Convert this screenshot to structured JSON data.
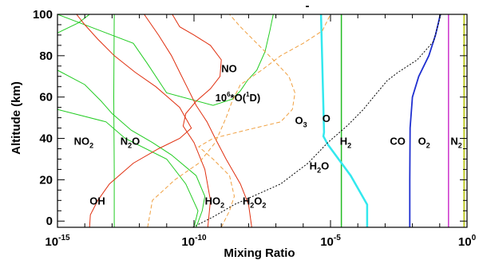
{
  "chart_data": {
    "type": "line",
    "title": "",
    "xlabel": "Mixing Ratio",
    "ylabel": "Altitude (km)",
    "xscale": "log",
    "xlim": [
      1e-15,
      1
    ],
    "ylim": [
      -3,
      100
    ],
    "x_ticks": [
      {
        "value": 1e-15,
        "base": "10",
        "exp": "-15"
      },
      {
        "value": 1e-10,
        "base": "10",
        "exp": "-10"
      },
      {
        "value": 1e-05,
        "base": "10",
        "exp": "-5"
      },
      {
        "value": 1,
        "base": "10",
        "exp": "0"
      }
    ],
    "y_ticks": [
      "0",
      "20",
      "40",
      "60",
      "80",
      "100"
    ],
    "top_mark": "-",
    "grid": false,
    "legend": "none",
    "series": [
      {
        "key": "N2",
        "color": "#b5c400",
        "dash": "solid",
        "width": 1.5,
        "points": [
          [
            0.78,
            -3
          ],
          [
            0.78,
            100
          ]
        ]
      },
      {
        "key": "O2",
        "color": "#cc33cc",
        "dash": "solid",
        "width": 1.5,
        "points": [
          [
            0.21,
            -3
          ],
          [
            0.21,
            100
          ]
        ]
      },
      {
        "key": "H2",
        "color": "#22bb22",
        "dash": "solid",
        "width": 1.5,
        "points": [
          [
            2.5e-05,
            -3
          ],
          [
            2.5e-05,
            100
          ]
        ]
      },
      {
        "key": "CO",
        "color": "#1f2fd0",
        "dash": "solid",
        "width": 1.8,
        "points": [
          [
            0.008,
            -3
          ],
          [
            0.008,
            20
          ],
          [
            0.0082,
            45
          ],
          [
            0.01,
            60
          ],
          [
            0.017,
            70
          ],
          [
            0.04,
            80
          ],
          [
            0.07,
            90
          ],
          [
            0.09,
            96
          ],
          [
            0.105,
            100
          ]
        ]
      },
      {
        "key": "H2O",
        "color": "#33e8ee",
        "dash": "solid",
        "width": 2.5,
        "points": [
          [
            0.00022,
            -3
          ],
          [
            0.00022,
            8
          ],
          [
            5.5e-05,
            22
          ],
          [
            8e-06,
            37
          ],
          [
            5.5e-06,
            41
          ],
          [
            5.8e-06,
            43
          ],
          [
            4.5e-06,
            100
          ]
        ]
      },
      {
        "key": "O3",
        "color": "#000000",
        "dash": "2,2",
        "width": 1,
        "points": [
          [
            9e-11,
            -3
          ],
          [
            5e-10,
            2
          ],
          [
            3e-09,
            8
          ],
          [
            1.5e-07,
            18
          ],
          [
            1.5e-06,
            28
          ],
          [
            8e-06,
            38
          ],
          [
            4e-05,
            46
          ],
          [
            0.00016,
            54
          ],
          [
            0.0005,
            62
          ],
          [
            0.0012,
            68
          ],
          [
            0.003,
            72
          ],
          [
            0.015,
            78
          ],
          [
            0.06,
            87
          ],
          [
            0.11,
            100
          ]
        ]
      },
      {
        "key": "NO",
        "color": "#22cc22",
        "dash": "solid",
        "width": 1,
        "points": [
          [
            1e-10,
            -3
          ],
          [
            1.4e-10,
            5
          ],
          [
            5e-11,
            18
          ],
          [
            1e-11,
            30
          ],
          [
            3e-13,
            40
          ],
          [
            6e-14,
            48
          ],
          [
            1e-15,
            54
          ]
        ]
      },
      {
        "key": "NO_upper",
        "color": "#22cc22",
        "dash": "solid",
        "width": 1,
        "points": [
          [
            1e-15,
            100
          ],
          [
            6e-13,
            86
          ],
          [
            2e-12,
            76
          ],
          [
            1e-11,
            62
          ],
          [
            5e-10,
            56
          ],
          [
            2.5e-09,
            59
          ],
          [
            5e-09,
            63
          ],
          [
            9e-09,
            68
          ],
          [
            2e-08,
            73
          ],
          [
            4e-08,
            82
          ],
          [
            6e-08,
            92
          ],
          [
            8e-08,
            100
          ]
        ]
      },
      {
        "key": "NO2",
        "color": "#22cc22",
        "dash": "solid",
        "width": 1,
        "points": [
          [
            1.2e-10,
            -3
          ],
          [
            2e-10,
            5
          ],
          [
            2.5e-10,
            12
          ],
          [
            1.2e-10,
            22
          ],
          [
            1.5e-11,
            32
          ],
          [
            3e-12,
            38
          ],
          [
            5e-13,
            44
          ],
          [
            1e-13,
            52
          ],
          [
            4e-14,
            58
          ],
          [
            1e-14,
            66
          ],
          [
            1e-15,
            73
          ]
        ]
      },
      {
        "key": "NO2_upper",
        "color": "#22cc22",
        "dash": "solid",
        "width": 1,
        "points": [
          [
            1e-15,
            91
          ],
          [
            6e-15,
            96
          ],
          [
            1.5e-14,
            100
          ]
        ]
      },
      {
        "key": "N2O",
        "color": "#22cc22",
        "dash": "solid",
        "width": 1,
        "points": [
          [
            1.2e-13,
            -3
          ],
          [
            1.2e-13,
            25
          ],
          [
            1.15e-13,
            60
          ],
          [
            1.2e-13,
            100
          ]
        ]
      },
      {
        "key": "OH",
        "color": "#e03010",
        "dash": "solid",
        "width": 1,
        "points": [
          [
            1.5e-14,
            -3
          ],
          [
            1.6e-14,
            3
          ],
          [
            3e-14,
            10
          ],
          [
            8e-14,
            18
          ],
          [
            6e-13,
            28
          ],
          [
            5e-12,
            35
          ],
          [
            3e-11,
            40
          ],
          [
            8e-11,
            45
          ],
          [
            3e-11,
            55
          ],
          [
            4e-12,
            65
          ],
          [
            7e-13,
            72
          ],
          [
            1.2e-13,
            80
          ],
          [
            3e-14,
            88
          ],
          [
            1e-14,
            95
          ],
          [
            5e-15,
            100
          ]
        ]
      },
      {
        "key": "HO2",
        "color": "#e03010",
        "dash": "solid",
        "width": 1,
        "points": [
          [
            3.2e-10,
            -3
          ],
          [
            4e-10,
            10
          ],
          [
            2.5e-10,
            25
          ],
          [
            1e-10,
            38
          ],
          [
            4e-11,
            46
          ],
          [
            5e-11,
            52
          ],
          [
            1.2e-10,
            58
          ],
          [
            4e-10,
            64
          ],
          [
            9e-10,
            70
          ],
          [
            1e-09,
            78
          ],
          [
            4e-10,
            85
          ],
          [
            1e-10,
            90
          ],
          [
            3e-11,
            94
          ],
          [
            1.6e-11,
            100
          ]
        ]
      },
      {
        "key": "H2O2",
        "color": "#e03010",
        "dash": "solid",
        "width": 1,
        "points": [
          [
            1.3e-08,
            -3
          ],
          [
            1e-08,
            8
          ],
          [
            5e-09,
            18
          ],
          [
            1.5e-09,
            30
          ],
          [
            6e-10,
            40
          ],
          [
            3e-10,
            48
          ],
          [
            1.2e-10,
            56
          ],
          [
            6e-11,
            64
          ],
          [
            3e-11,
            72
          ],
          [
            1.5e-11,
            80
          ],
          [
            5e-12,
            90
          ],
          [
            1.5e-12,
            100
          ]
        ]
      },
      {
        "key": "O1D",
        "color": "#f0a040",
        "dash": "5,3",
        "width": 1,
        "points": [
          [
            2e-12,
            -3
          ],
          [
            3e-12,
            10
          ],
          [
            2e-11,
            20
          ],
          [
            1.5e-10,
            28
          ],
          [
            6e-10,
            38
          ],
          [
            1.5e-09,
            50
          ],
          [
            2.5e-09,
            58
          ],
          [
            5e-09,
            66
          ],
          [
            3e-08,
            73
          ],
          [
            1.5e-07,
            80
          ],
          [
            1e-06,
            86
          ],
          [
            5e-06,
            92
          ],
          [
            1e-05,
            100
          ]
        ]
      },
      {
        "key": "O",
        "color": "#f0a040",
        "dash": "5,3",
        "width": 1,
        "points": [
          [
            1e-09,
            -3
          ],
          [
            2e-09,
            5
          ],
          [
            3e-09,
            12
          ],
          [
            2e-09,
            22
          ],
          [
            5e-10,
            30
          ],
          [
            1.5e-10,
            36
          ],
          [
            5e-10,
            40
          ],
          [
            8e-09,
            44
          ],
          [
            1.5e-07,
            48
          ],
          [
            4e-07,
            54
          ],
          [
            5e-07,
            62
          ],
          [
            3e-07,
            70
          ],
          [
            8e-08,
            78
          ],
          [
            2e-08,
            86
          ],
          [
            5e-09,
            94
          ],
          [
            2e-09,
            100
          ]
        ]
      }
    ],
    "annotations": [
      {
        "key": "NO2",
        "parts": [
          {
            "t": "NO",
            "k": "n"
          },
          {
            "t": "2",
            "k": "sub"
          }
        ],
        "x": 4e-15,
        "y": 37
      },
      {
        "key": "N2O",
        "parts": [
          {
            "t": "N",
            "k": "n"
          },
          {
            "t": "2",
            "k": "sub"
          },
          {
            "t": "O",
            "k": "n"
          }
        ],
        "x": 2e-13,
        "y": 37
      },
      {
        "key": "NO",
        "parts": [
          {
            "t": "NO",
            "k": "n"
          }
        ],
        "x": 1e-09,
        "y": 72
      },
      {
        "key": "O1D",
        "parts": [
          {
            "t": "10",
            "k": "n"
          },
          {
            "t": "6",
            "k": "sup"
          },
          {
            "t": "*O(",
            "k": "n"
          },
          {
            "t": "1",
            "k": "sup"
          },
          {
            "t": "D)",
            "k": "n"
          }
        ],
        "x": 6e-10,
        "y": 58
      },
      {
        "key": "O3",
        "parts": [
          {
            "t": "O",
            "k": "n"
          },
          {
            "t": "3",
            "k": "sub"
          }
        ],
        "x": 5e-07,
        "y": 47
      },
      {
        "key": "O",
        "parts": [
          {
            "t": "O",
            "k": "n"
          }
        ],
        "x": 5e-06,
        "y": 48
      },
      {
        "key": "H2",
        "parts": [
          {
            "t": "H",
            "k": "n"
          },
          {
            "t": "2",
            "k": "sub"
          }
        ],
        "x": 2.2e-05,
        "y": 37
      },
      {
        "key": "CO",
        "parts": [
          {
            "t": "CO",
            "k": "n"
          }
        ],
        "x": 0.0015,
        "y": 37
      },
      {
        "key": "O2",
        "parts": [
          {
            "t": "O",
            "k": "n"
          },
          {
            "t": "2",
            "k": "sub"
          }
        ],
        "x": 0.016,
        "y": 37
      },
      {
        "key": "N2",
        "parts": [
          {
            "t": "N",
            "k": "n"
          },
          {
            "t": "2",
            "k": "sub"
          }
        ],
        "x": 0.25,
        "y": 37
      },
      {
        "key": "H2O",
        "parts": [
          {
            "t": "H",
            "k": "n"
          },
          {
            "t": "2",
            "k": "sub"
          },
          {
            "t": "O",
            "k": "n"
          }
        ],
        "x": 1.7e-06,
        "y": 25
      },
      {
        "key": "OH",
        "parts": [
          {
            "t": "OH",
            "k": "n"
          }
        ],
        "x": 1.5e-14,
        "y": 8
      },
      {
        "key": "HO2",
        "parts": [
          {
            "t": "HO",
            "k": "n"
          },
          {
            "t": "2",
            "k": "sub"
          }
        ],
        "x": 2.5e-10,
        "y": 8
      },
      {
        "key": "H2O2",
        "parts": [
          {
            "t": "H",
            "k": "n"
          },
          {
            "t": "2",
            "k": "sub"
          },
          {
            "t": "O",
            "k": "n"
          },
          {
            "t": "2",
            "k": "sub"
          }
        ],
        "x": 6e-09,
        "y": 8
      }
    ]
  }
}
